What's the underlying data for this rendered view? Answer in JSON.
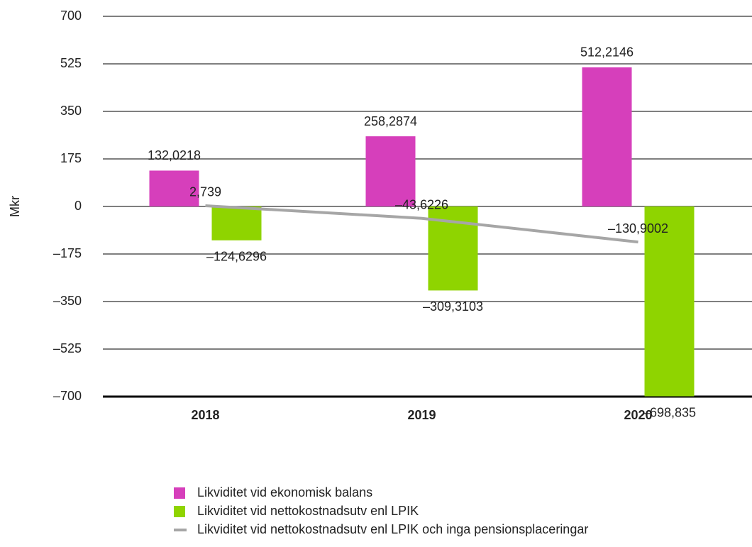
{
  "chart_data": {
    "type": "bar",
    "categories": [
      "2018",
      "2019",
      "2020"
    ],
    "series": [
      {
        "name": "Likviditet vid ekonomisk balans",
        "type": "bar",
        "color": "#d63fbb",
        "values": [
          132.0218,
          258.2874,
          512.2146
        ],
        "value_labels": [
          "132,0218",
          "258,2874",
          "512,2146"
        ]
      },
      {
        "name": "Likviditet vid nettokostnadsutv enl LPIK",
        "type": "bar",
        "color": "#8fd400",
        "values": [
          -124.6296,
          -309.3103,
          -698.835
        ],
        "value_labels": [
          "–124,6296",
          "–309,3103",
          "–698,835"
        ]
      },
      {
        "name": "Likviditet vid nettokostnadsutv enl LPIK och inga pensionsplaceringar",
        "type": "line",
        "color": "#a6a6a6",
        "values": [
          2.739,
          -43.6226,
          -130.9002
        ],
        "value_labels": [
          "2,739",
          "–43,6226",
          "–130,9002"
        ]
      }
    ],
    "y_label": "Mkr",
    "ylim": [
      -700,
      700
    ],
    "yticks": [
      {
        "value": -700,
        "label": "–700"
      },
      {
        "value": -525,
        "label": "–525"
      },
      {
        "value": -350,
        "label": "–350"
      },
      {
        "value": -175,
        "label": "–175"
      },
      0,
      175,
      350,
      525,
      700
    ],
    "grid": true,
    "legend": "bottom"
  }
}
